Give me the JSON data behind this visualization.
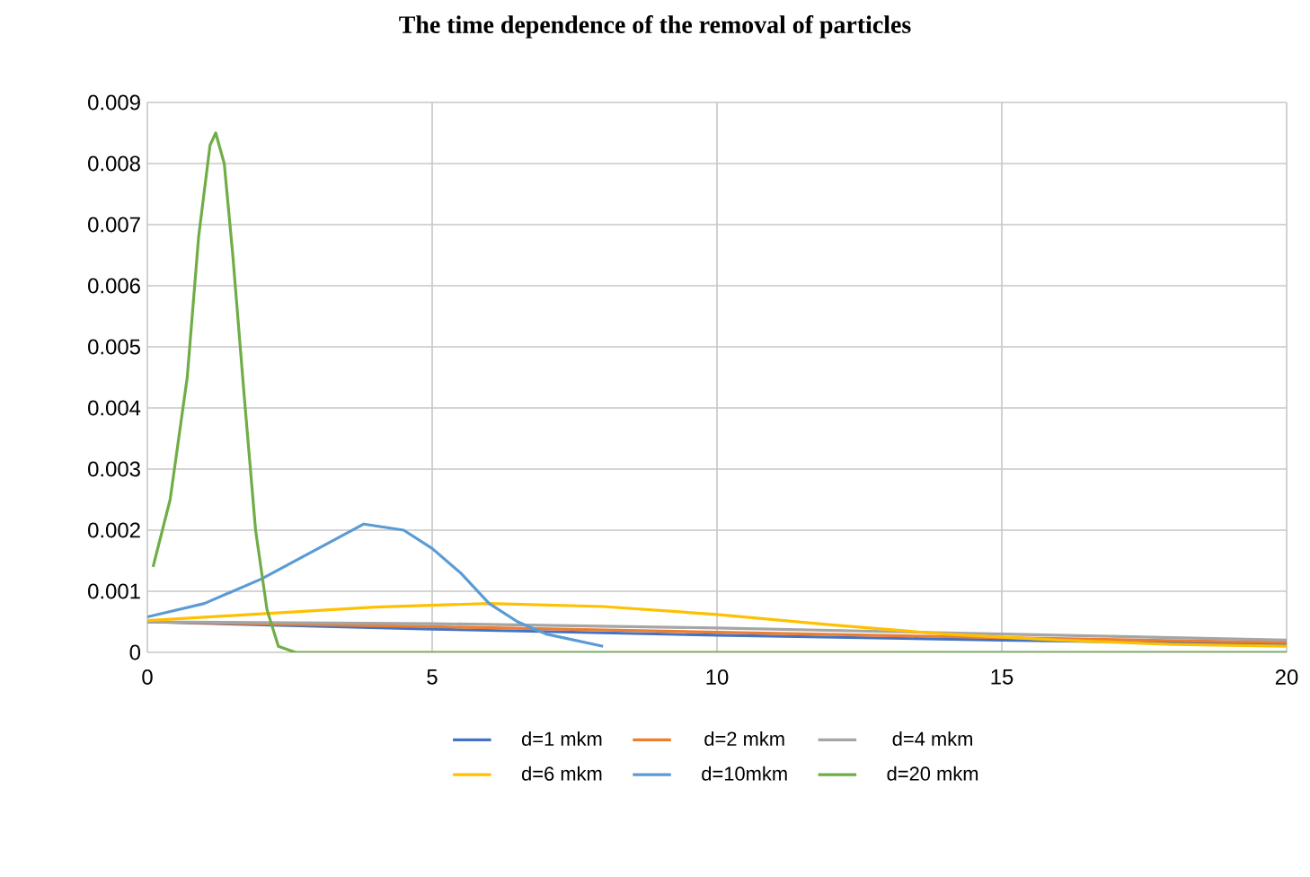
{
  "chart_data": {
    "type": "line",
    "title": "The time dependence of the removal of particles",
    "xlim": [
      0,
      20
    ],
    "xticks": [
      0,
      5,
      10,
      15,
      20
    ],
    "ylim": [
      0,
      0.009
    ],
    "yticks": [
      0,
      0.001,
      0.002,
      0.003,
      0.004,
      0.005,
      0.006,
      0.007,
      0.008,
      0.009
    ],
    "grid": true,
    "legend": "bottom",
    "series": [
      {
        "name": "d=1 mkm",
        "color": "#4472c4",
        "x": [
          0,
          5,
          10,
          15,
          20
        ],
        "values": [
          0.0005,
          0.00038,
          0.00028,
          0.0002,
          0.00013
        ]
      },
      {
        "name": "d=2 mkm",
        "color": "#ed7d31",
        "x": [
          0,
          5,
          10,
          15,
          20
        ],
        "values": [
          0.0005,
          0.00042,
          0.00033,
          0.00024,
          0.00016
        ]
      },
      {
        "name": "d=4 mkm",
        "color": "#a5a5a5",
        "x": [
          0,
          5,
          10,
          15,
          20
        ],
        "values": [
          0.0005,
          0.00047,
          0.0004,
          0.0003,
          0.0002
        ]
      },
      {
        "name": "d=6 mkm",
        "color": "#ffc000",
        "x": [
          0,
          2,
          4,
          6,
          8,
          10,
          12,
          14,
          16,
          18,
          20
        ],
        "values": [
          0.00052,
          0.00063,
          0.00074,
          0.0008,
          0.00075,
          0.00062,
          0.00045,
          0.0003,
          0.0002,
          0.00013,
          0.0001
        ]
      },
      {
        "name": "d=10mkm",
        "color": "#5b9bd5",
        "x": [
          0,
          1,
          2,
          3,
          3.8,
          4.5,
          5,
          5.5,
          6,
          6.5,
          7,
          8
        ],
        "values": [
          0.00058,
          0.0008,
          0.0012,
          0.0017,
          0.0021,
          0.002,
          0.0017,
          0.0013,
          0.0008,
          0.0005,
          0.0003,
          0.0001
        ]
      },
      {
        "name": "d=20 mkm",
        "color": "#70ad47",
        "x": [
          0.1,
          0.4,
          0.7,
          0.9,
          1.1,
          1.2,
          1.35,
          1.5,
          1.7,
          1.9,
          2.1,
          2.3,
          2.6,
          3,
          5,
          10,
          20
        ],
        "values": [
          0.0014,
          0.0025,
          0.0045,
          0.0068,
          0.0083,
          0.0085,
          0.008,
          0.0065,
          0.0042,
          0.002,
          0.0007,
          0.0001,
          0,
          0,
          0,
          0,
          0
        ]
      }
    ]
  }
}
